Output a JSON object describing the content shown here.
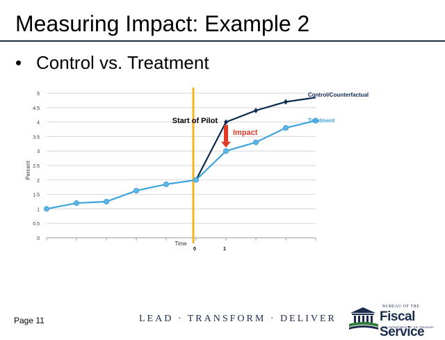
{
  "slide": {
    "title": "Measuring Impact: Example 2",
    "bullet": "•",
    "bullet_text": "Control vs. Treatment"
  },
  "chart_data": {
    "type": "line",
    "ylabel": "Percent",
    "xlabel": "Time",
    "ylim": [
      0,
      5
    ],
    "y_ticks": [
      "0",
      "0.5",
      "1",
      "1.5",
      "2",
      "2.5",
      "3",
      "3.5",
      "4",
      "4.5",
      "5"
    ],
    "x_tick_labels": [
      "0",
      "1"
    ],
    "grid": true,
    "x": [
      0,
      1,
      2,
      3,
      4,
      5,
      6,
      7,
      8,
      9
    ],
    "series": [
      {
        "name": "Control/Counterfactual",
        "color": "#0b2a4f",
        "x": [
          5,
          6,
          7,
          8,
          9
        ],
        "values": [
          2.0,
          4.0,
          4.4,
          4.7,
          4.85
        ]
      },
      {
        "name": "Treatment",
        "color": "#3ba3dc",
        "x": [
          0,
          1,
          2,
          3,
          4,
          5,
          6,
          7,
          8,
          9
        ],
        "values": [
          1.0,
          1.2,
          1.25,
          1.63,
          1.85,
          2.0,
          3.0,
          3.3,
          3.8,
          4.05
        ]
      }
    ],
    "annotations": {
      "pilot_label": "Start of Pilot",
      "pilot_line_color": "#f5b324",
      "impact_label": "Impact",
      "impact_color": "#e03b26"
    }
  },
  "footer": {
    "page": "Page 11",
    "tagline": "LEAD · TRANSFORM · DELIVER",
    "logo": {
      "top": "BUREAU OF THE",
      "main": "Fiscal Service",
      "sub": "U.S. DEPARTMENT OF THE TREASURY"
    }
  }
}
